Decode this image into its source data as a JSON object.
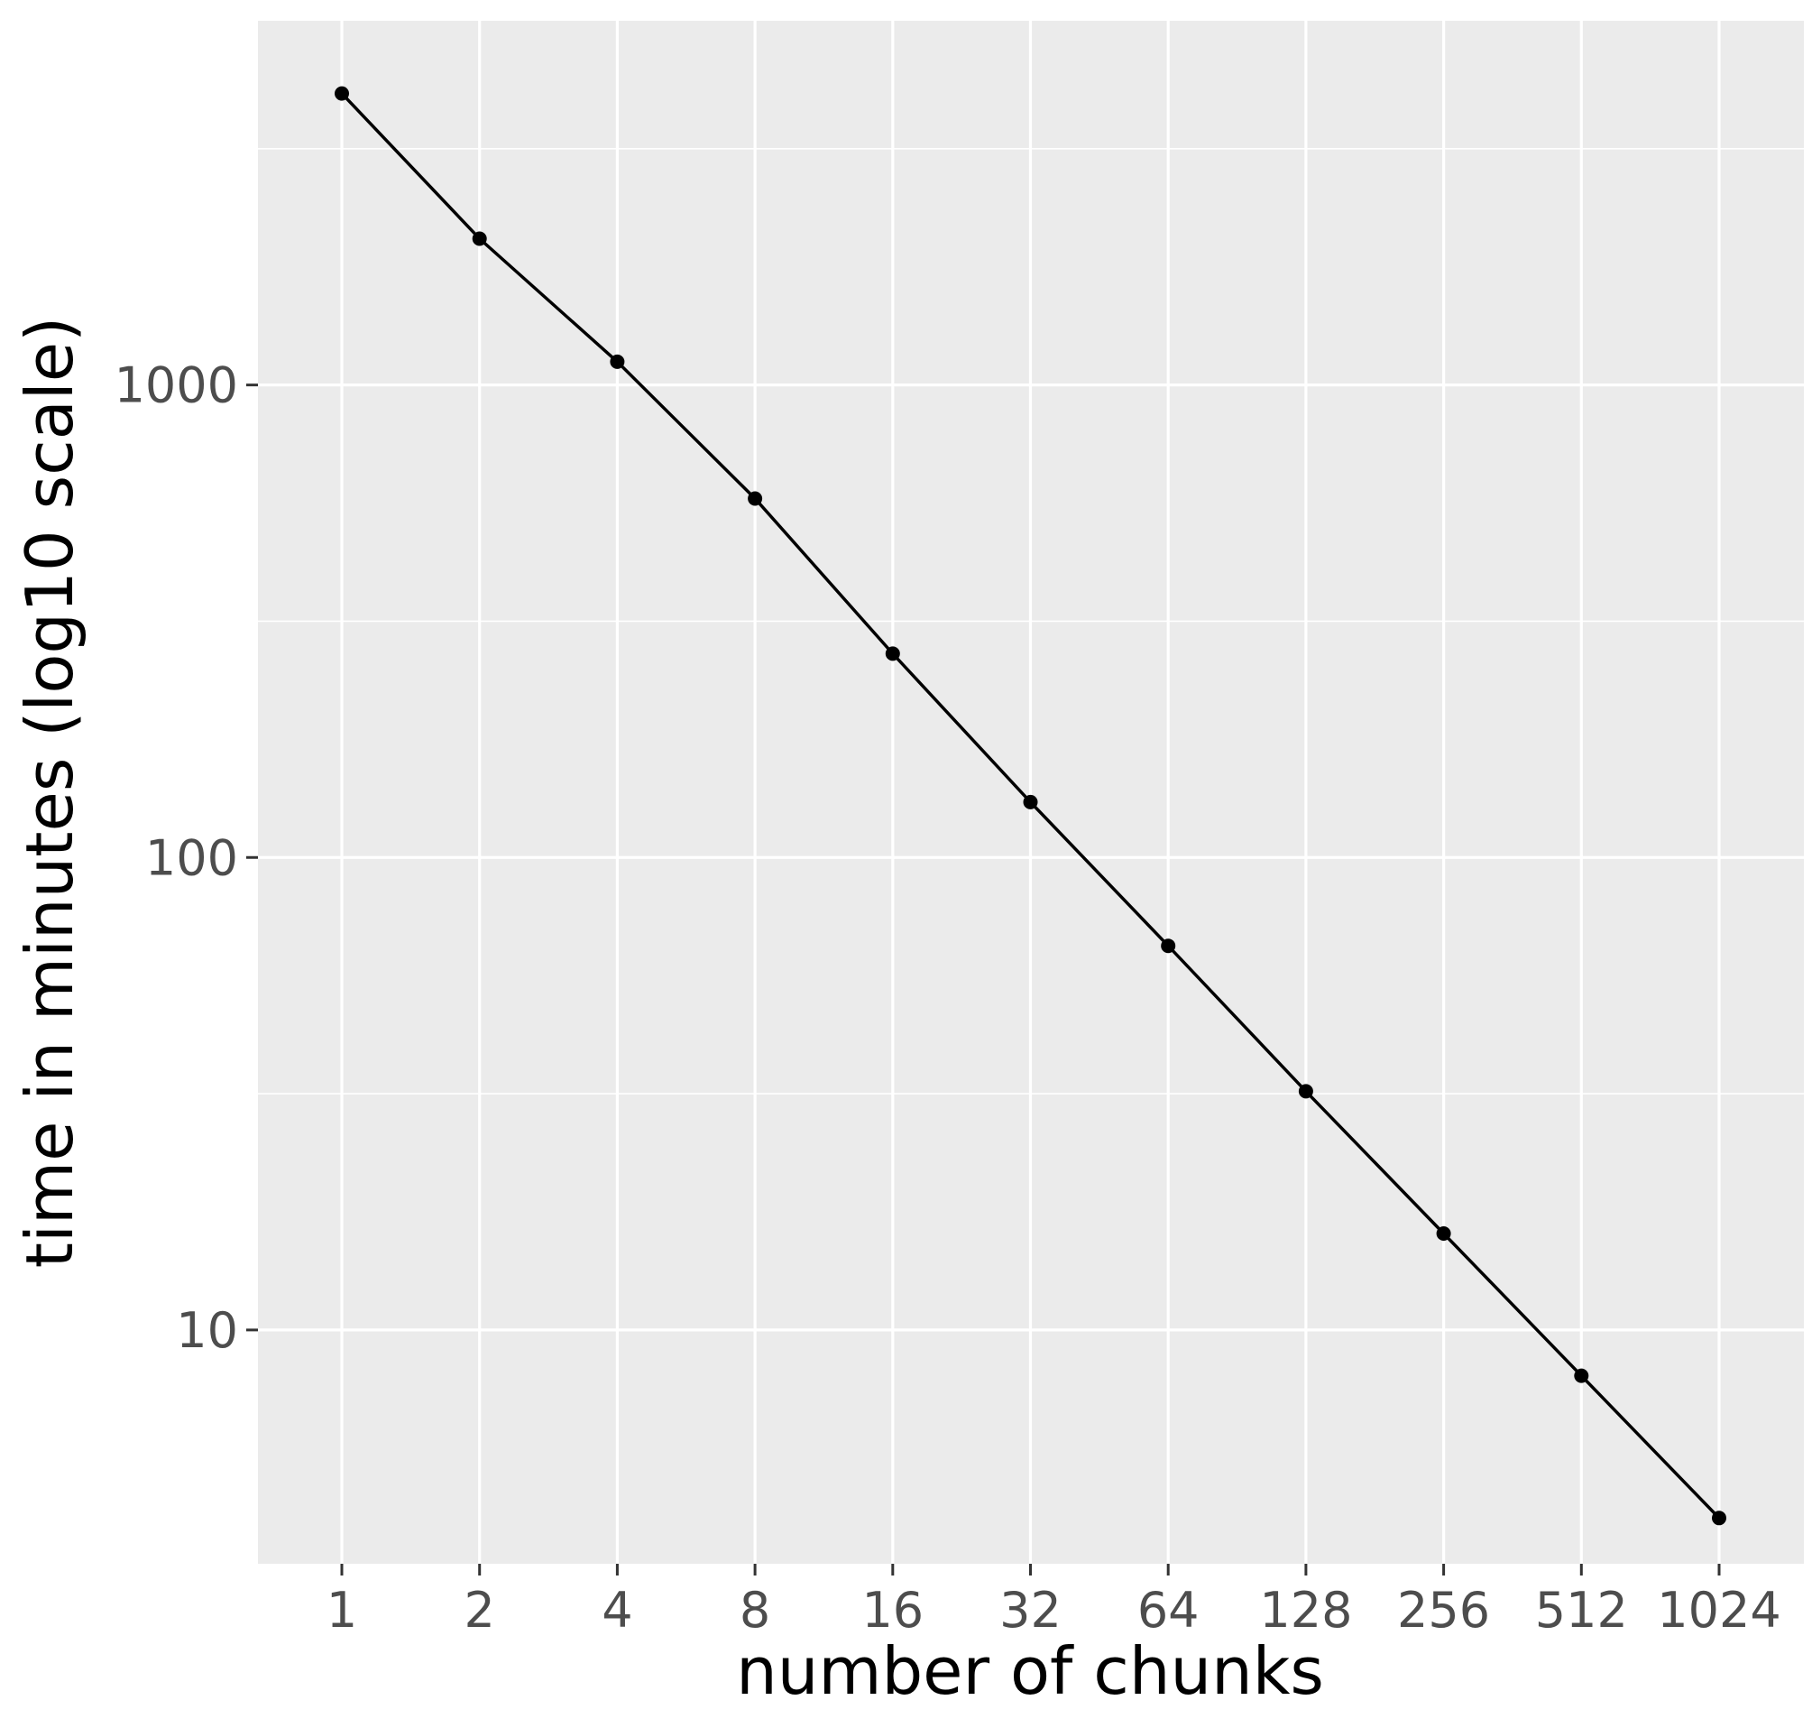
{
  "chart_data": {
    "type": "line",
    "title": "",
    "xlabel": "number of chunks",
    "ylabel": "time in minutes (log10 scale)",
    "x_scale": "log2",
    "y_scale": "log10",
    "x": [
      1,
      2,
      4,
      8,
      16,
      32,
      64,
      128,
      256,
      512,
      1024
    ],
    "x_tick_labels": [
      "1",
      "2",
      "4",
      "8",
      "16",
      "32",
      "64",
      "128",
      "256",
      "512",
      "1024"
    ],
    "y_ticks": [
      10,
      100,
      1000
    ],
    "y_tick_labels": [
      "10",
      "100",
      "1000"
    ],
    "ylim": [
      3.2,
      5900
    ],
    "grid": true,
    "legend": "none",
    "series": [
      {
        "values": [
          4140,
          2040,
          1120,
          575,
          270,
          131,
          65,
          32,
          16,
          8,
          4
        ],
        "color": "#000000"
      }
    ],
    "colors": {
      "panel": "#ebebeb",
      "grid": "#ffffff",
      "tick_label": "#4d4d4d",
      "axis_title": "#000000",
      "series": "#000000"
    }
  }
}
